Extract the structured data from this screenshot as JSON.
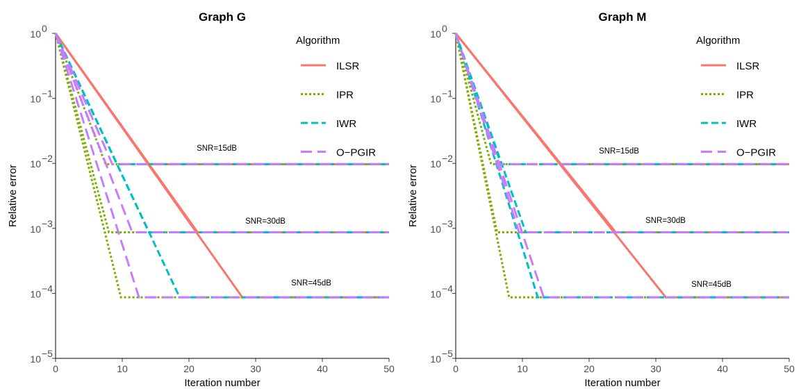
{
  "chart_data": [
    {
      "type": "line",
      "title": "Graph G",
      "xlabel": "Iteration number",
      "ylabel": "Relative error",
      "xlim": [
        0,
        50
      ],
      "ylim": [
        1e-05,
        1
      ],
      "yscale": "log",
      "grid": false,
      "legend": {
        "title": "Algorithm",
        "placement": "top-right"
      },
      "xticks": [
        "0",
        "10",
        "20",
        "30",
        "40",
        "50"
      ],
      "ytick_exponents": [
        "0",
        "−1",
        "−2",
        "−3",
        "−4",
        "−5"
      ],
      "ytick_base": "10",
      "annotations": [
        "SNR=15dB",
        "SNR=30dB",
        "SNR=45dB"
      ],
      "series": [
        {
          "name": "ILSR",
          "color": "#F8766D",
          "dash": "solid",
          "curves": [
            [
              [
                0,
                1
              ],
              [
                14,
                0.0097
              ],
              [
                50,
                0.0097
              ]
            ],
            [
              [
                0,
                1
              ],
              [
                21.3,
                0.00087
              ],
              [
                50,
                0.00087
              ]
            ],
            [
              [
                0,
                1
              ],
              [
                28,
                8.7e-05
              ],
              [
                50,
                8.7e-05
              ]
            ]
          ]
        },
        {
          "name": "IPR",
          "color": "#7CAE00",
          "dash": "dotted",
          "curves": [
            [
              [
                0,
                1
              ],
              [
                7.5,
                0.0097
              ],
              [
                50,
                0.0097
              ]
            ],
            [
              [
                0,
                1
              ],
              [
                8,
                0.00087
              ],
              [
                50,
                0.00087
              ]
            ],
            [
              [
                0,
                1
              ],
              [
                9.8,
                8.7e-05
              ],
              [
                50,
                8.7e-05
              ]
            ]
          ]
        },
        {
          "name": "IWR",
          "color": "#00BFC4",
          "dash": "dashed",
          "curves": [
            [
              [
                0,
                1
              ],
              [
                9.2,
                0.0097
              ],
              [
                50,
                0.0097
              ]
            ],
            [
              [
                0,
                1
              ],
              [
                14,
                0.00087
              ],
              [
                50,
                0.00087
              ]
            ],
            [
              [
                0,
                1
              ],
              [
                18.6,
                8.7e-05
              ],
              [
                50,
                8.7e-05
              ]
            ]
          ]
        },
        {
          "name": "O−PGIR",
          "color": "#C77CFF",
          "dash": "longdash",
          "curves": [
            [
              [
                0,
                1
              ],
              [
                8.5,
                0.0097
              ],
              [
                50,
                0.0097
              ]
            ],
            [
              [
                0,
                1
              ],
              [
                11.5,
                0.00087
              ],
              [
                50,
                0.00087
              ]
            ],
            [
              [
                0,
                1
              ],
              [
                12.5,
                8.7e-05
              ],
              [
                50,
                8.7e-05
              ]
            ]
          ]
        }
      ]
    },
    {
      "type": "line",
      "title": "Graph M",
      "xlabel": "Iteration number",
      "ylabel": "Relative error",
      "xlim": [
        0,
        50
      ],
      "ylim": [
        1e-05,
        1
      ],
      "yscale": "log",
      "grid": false,
      "legend": {
        "title": "Algorithm",
        "placement": "top-right"
      },
      "xticks": [
        "0",
        "10",
        "20",
        "30",
        "40",
        "50"
      ],
      "ytick_exponents": [
        "0",
        "−1",
        "−2",
        "−3",
        "−4",
        "−5"
      ],
      "ytick_base": "10",
      "annotations": [
        "SNR=15dB",
        "SNR=30dB",
        "SNR=45dB"
      ],
      "series": [
        {
          "name": "ILSR",
          "color": "#F8766D",
          "dash": "solid",
          "curves": [
            [
              [
                0,
                1
              ],
              [
                15.7,
                0.0097
              ],
              [
                50,
                0.0097
              ]
            ],
            [
              [
                0,
                1
              ],
              [
                24,
                0.00087
              ],
              [
                50,
                0.00087
              ]
            ],
            [
              [
                0,
                1
              ],
              [
                31.5,
                8.7e-05
              ],
              [
                50,
                8.7e-05
              ]
            ]
          ]
        },
        {
          "name": "IPR",
          "color": "#7CAE00",
          "dash": "dotted",
          "curves": [
            [
              [
                0,
                1
              ],
              [
                5.3,
                0.0097
              ],
              [
                50,
                0.0097
              ]
            ],
            [
              [
                0,
                1
              ],
              [
                6.2,
                0.00087
              ],
              [
                50,
                0.00087
              ]
            ],
            [
              [
                0,
                1
              ],
              [
                8,
                8.7e-05
              ],
              [
                50,
                8.7e-05
              ]
            ]
          ]
        },
        {
          "name": "IWR",
          "color": "#00BFC4",
          "dash": "dashed",
          "curves": [
            [
              [
                0,
                1
              ],
              [
                6.8,
                0.0097
              ],
              [
                50,
                0.0097
              ]
            ],
            [
              [
                0,
                1
              ],
              [
                10.5,
                0.00087
              ],
              [
                50,
                0.00087
              ]
            ],
            [
              [
                0,
                1
              ],
              [
                12.3,
                8.7e-05
              ],
              [
                50,
                8.7e-05
              ]
            ]
          ]
        },
        {
          "name": "O−PGIR",
          "color": "#C77CFF",
          "dash": "longdash",
          "curves": [
            [
              [
                0,
                1
              ],
              [
                6.2,
                0.0097
              ],
              [
                50,
                0.0097
              ]
            ],
            [
              [
                0,
                1
              ],
              [
                9.5,
                0.00087
              ],
              [
                50,
                0.00087
              ]
            ],
            [
              [
                0,
                1
              ],
              [
                13.2,
                8.7e-05
              ],
              [
                50,
                8.7e-05
              ]
            ]
          ]
        }
      ]
    }
  ]
}
